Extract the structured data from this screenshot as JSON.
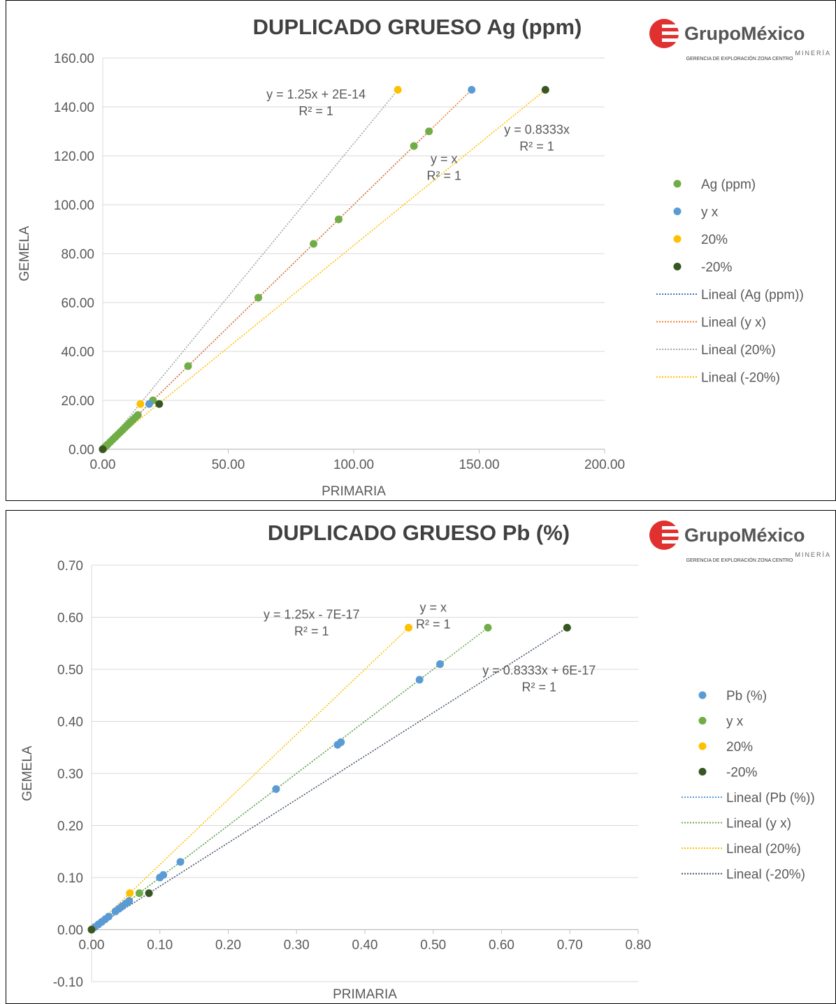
{
  "chart_data": [
    {
      "type": "scatter",
      "title": "DUPLICADO GRUESO Ag (ppm)",
      "xlabel": "PRIMARIA",
      "ylabel": "GEMELA",
      "xlim": [
        0,
        200
      ],
      "ylim": [
        0,
        160
      ],
      "x_ticks": [
        "0.00",
        "50.00",
        "100.00",
        "150.00",
        "200.00"
      ],
      "y_ticks": [
        "0.00",
        "20.00",
        "40.00",
        "60.00",
        "80.00",
        "100.00",
        "120.00",
        "140.00",
        "160.00"
      ],
      "grid": true,
      "legend_position": "right",
      "series": [
        {
          "name": "Ag (ppm)",
          "color": "#70ad47",
          "x": [
            0,
            0.5,
            1,
            1.5,
            2,
            3,
            4,
            5,
            6,
            7,
            8,
            9,
            10,
            11,
            12,
            13,
            14,
            20,
            34,
            62,
            84,
            94,
            124,
            130
          ],
          "y": [
            0,
            0.5,
            1,
            1.5,
            2,
            3,
            4,
            5,
            6,
            7,
            8,
            9,
            10,
            11,
            12,
            13,
            14,
            20,
            34,
            62,
            84,
            94,
            124,
            130
          ]
        },
        {
          "name": "y x",
          "color": "#5b9bd5",
          "x": [
            0,
            18.5,
            147
          ],
          "y": [
            0,
            18.5,
            147
          ]
        },
        {
          "name": "20%",
          "color": "#ffc000",
          "x": [
            0,
            15,
            117.6
          ],
          "y": [
            0,
            18.5,
            147
          ]
        },
        {
          "name": "-20%",
          "color": "#375623",
          "x": [
            0,
            22.5,
            176.4
          ],
          "y": [
            0,
            18.5,
            147
          ]
        }
      ],
      "trendlines": [
        {
          "name": "Lineal (Ag (ppm))",
          "color": "#4472c4",
          "x": [
            0,
            130
          ],
          "y": [
            0,
            130
          ]
        },
        {
          "name": "Lineal (y x)",
          "color": "#ed7d31",
          "x": [
            0,
            147
          ],
          "y": [
            0,
            147
          ]
        },
        {
          "name": "Lineal (20%)",
          "color": "#a5a5a5",
          "x": [
            0,
            117.6
          ],
          "y": [
            0,
            147
          ]
        },
        {
          "name": "Lineal (-20%)",
          "color": "#ffc000",
          "x": [
            0,
            176.4
          ],
          "y": [
            0,
            147
          ]
        }
      ],
      "annotations": [
        {
          "lines": [
            "y = 1.25x + 2E-14",
            "R² = 1"
          ],
          "x": 85,
          "y": 143.5
        },
        {
          "lines": [
            "y = x",
            "R² = 1"
          ],
          "x": 136,
          "y": 117
        },
        {
          "lines": [
            "y = 0.8333x",
            "R² = 1"
          ],
          "x": 173,
          "y": 129
        }
      ],
      "logo": {
        "name": "GrupoMéxico",
        "sub": "MINERÍA",
        "sub2": "GERENCIA DE EXPLORACIÓN ZONA CENTRO"
      }
    },
    {
      "type": "scatter",
      "title": "DUPLICADO GRUESO Pb (%)",
      "xlabel": "PRIMARIA",
      "ylabel": "GEMELA",
      "xlim": [
        0,
        0.8
      ],
      "ylim": [
        -0.1,
        0.7
      ],
      "x_ticks": [
        "0.00",
        "0.10",
        "0.20",
        "0.30",
        "0.40",
        "0.50",
        "0.60",
        "0.70",
        "0.80"
      ],
      "y_ticks": [
        "-0.10",
        "0.00",
        "0.10",
        "0.20",
        "0.30",
        "0.40",
        "0.50",
        "0.60",
        "0.70"
      ],
      "grid": true,
      "legend_position": "right",
      "series": [
        {
          "name": "Pb (%)",
          "color": "#5b9bd5",
          "x": [
            0,
            0.005,
            0.01,
            0.015,
            0.02,
            0.025,
            0.035,
            0.04,
            0.045,
            0.05,
            0.055,
            0.1,
            0.105,
            0.13,
            0.27,
            0.36,
            0.365,
            0.48,
            0.51
          ],
          "y": [
            0,
            0.005,
            0.01,
            0.015,
            0.02,
            0.025,
            0.035,
            0.04,
            0.045,
            0.05,
            0.055,
            0.1,
            0.105,
            0.13,
            0.27,
            0.355,
            0.36,
            0.48,
            0.51
          ]
        },
        {
          "name": "y x",
          "color": "#70ad47",
          "x": [
            0,
            0.07,
            0.58
          ],
          "y": [
            0,
            0.07,
            0.58
          ]
        },
        {
          "name": "20%",
          "color": "#ffc000",
          "x": [
            0,
            0.056,
            0.464
          ],
          "y": [
            0,
            0.07,
            0.58
          ]
        },
        {
          "name": "-20%",
          "color": "#375623",
          "x": [
            0,
            0.084,
            0.696
          ],
          "y": [
            0,
            0.07,
            0.58
          ]
        }
      ],
      "trendlines": [
        {
          "name": "Lineal (Pb (%))",
          "color": "#5b9bd5",
          "x": [
            0,
            0.51
          ],
          "y": [
            0,
            0.51
          ]
        },
        {
          "name": "Lineal (y x)",
          "color": "#70ad47",
          "x": [
            0,
            0.58
          ],
          "y": [
            0,
            0.58
          ]
        },
        {
          "name": "Lineal (20%)",
          "color": "#ffc000",
          "x": [
            0,
            0.464
          ],
          "y": [
            0,
            0.58
          ]
        },
        {
          "name": "Lineal (-20%)",
          "color": "#44546a",
          "x": [
            0,
            0.696
          ],
          "y": [
            0,
            0.58
          ]
        }
      ],
      "annotations": [
        {
          "lines": [
            "y = 1.25x - 7E-17",
            "R² = 1"
          ],
          "x": 0.322,
          "y": 0.597
        },
        {
          "lines": [
            "y = x",
            "R² = 1"
          ],
          "x": 0.5,
          "y": 0.611
        },
        {
          "lines": [
            "y = 0.8333x + 6E-17",
            "R² = 1"
          ],
          "x": 0.655,
          "y": 0.49
        }
      ],
      "logo": {
        "name": "GrupoMéxico",
        "sub": "MINERÍA",
        "sub2": "GERENCIA DE EXPLORACIÓN ZONA CENTRO"
      }
    }
  ]
}
